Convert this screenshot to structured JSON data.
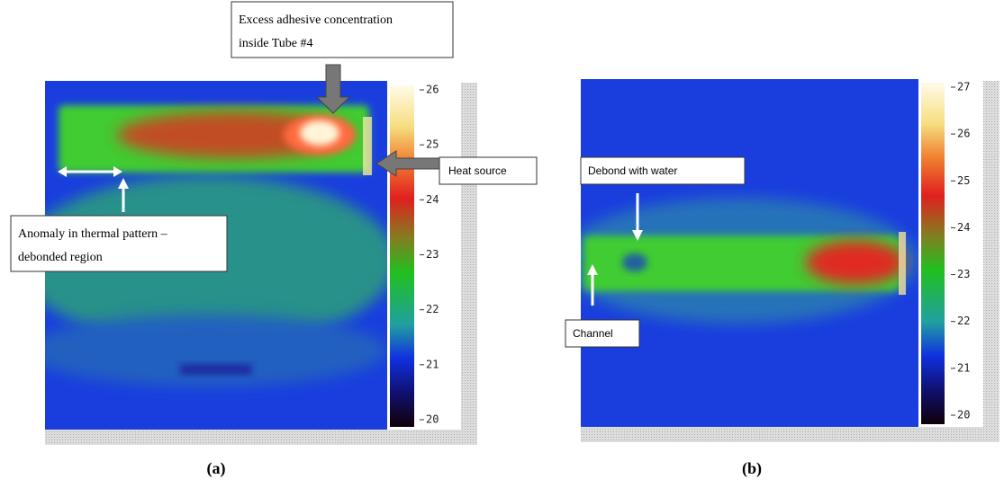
{
  "panels": [
    {
      "caption": "(a)",
      "colorbar": {
        "ticks": [
          20,
          21,
          22,
          23,
          24,
          25,
          26
        ]
      },
      "annotations": {
        "adhesive": [
          "Excess adhesive concentration",
          "inside Tube #4"
        ],
        "heat_source": "Heat source",
        "anomaly": [
          "Anomaly in thermal pattern –",
          "debonded region"
        ]
      }
    },
    {
      "caption": "(b)",
      "colorbar": {
        "ticks": [
          20,
          21,
          22,
          23,
          24,
          25,
          26,
          27
        ]
      },
      "annotations": {
        "debond": "Debond with water",
        "channel": "Channel"
      }
    }
  ]
}
